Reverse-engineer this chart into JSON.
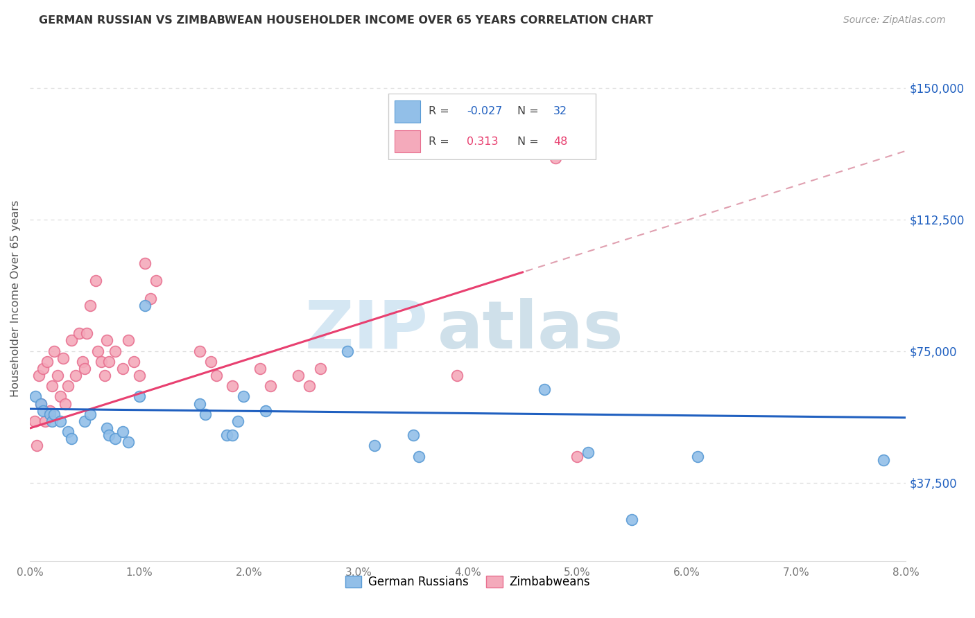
{
  "title": "GERMAN RUSSIAN VS ZIMBABWEAN HOUSEHOLDER INCOME OVER 65 YEARS CORRELATION CHART",
  "source": "Source: ZipAtlas.com",
  "ylabel": "Householder Income Over 65 years",
  "xlim": [
    0.0,
    8.0
  ],
  "ylim": [
    15000,
    165000
  ],
  "yticks": [
    37500,
    75000,
    112500,
    150000
  ],
  "ytick_labels": [
    "$37,500",
    "$75,000",
    "$112,500",
    "$150,000"
  ],
  "xticks": [
    0,
    1,
    2,
    3,
    4,
    5,
    6,
    7,
    8
  ],
  "xtick_labels": [
    "0.0%",
    "1.0%",
    "2.0%",
    "3.0%",
    "4.0%",
    "5.0%",
    "6.0%",
    "7.0%",
    "8.0%"
  ],
  "blue_color": "#92BFE8",
  "blue_edge_color": "#5A9BD5",
  "pink_color": "#F4AABB",
  "pink_edge_color": "#E87090",
  "blue_line_color": "#2060C0",
  "pink_line_color": "#E84070",
  "pink_dash_color": "#E0A0B0",
  "watermark_zip_color": "#C8DFF0",
  "watermark_atlas_color": "#B0CCDC",
  "title_color": "#333333",
  "source_color": "#999999",
  "ylabel_color": "#555555",
  "tick_color": "#777777",
  "right_tick_color": "#2060C0",
  "grid_color": "#DDDDDD",
  "legend_border_color": "#CCCCCC",
  "blue_scatter_x": [
    0.05,
    0.1,
    0.12,
    0.18,
    0.2,
    0.22,
    0.28,
    0.35,
    0.38,
    0.5,
    0.55,
    0.7,
    0.72,
    0.78,
    0.85,
    0.9,
    1.0,
    1.05,
    1.55,
    1.6,
    1.8,
    1.85,
    1.9,
    1.95,
    2.15,
    2.9,
    3.15,
    3.5,
    3.55,
    4.7,
    5.1,
    5.5,
    6.1,
    7.8
  ],
  "blue_scatter_y": [
    62000,
    60000,
    58000,
    57000,
    55000,
    57000,
    55000,
    52000,
    50000,
    55000,
    57000,
    53000,
    51000,
    50000,
    52000,
    49000,
    62000,
    88000,
    60000,
    57000,
    51000,
    51000,
    55000,
    62000,
    58000,
    75000,
    48000,
    51000,
    45000,
    64000,
    46000,
    27000,
    45000,
    44000
  ],
  "pink_scatter_x": [
    0.04,
    0.06,
    0.08,
    0.1,
    0.12,
    0.14,
    0.16,
    0.18,
    0.2,
    0.22,
    0.25,
    0.28,
    0.3,
    0.32,
    0.35,
    0.38,
    0.42,
    0.45,
    0.48,
    0.5,
    0.52,
    0.55,
    0.6,
    0.62,
    0.65,
    0.68,
    0.7,
    0.72,
    0.78,
    0.85,
    0.9,
    0.95,
    1.0,
    1.05,
    1.1,
    1.15,
    1.55,
    1.65,
    1.7,
    1.85,
    2.1,
    2.2,
    2.45,
    2.55,
    2.65,
    3.9,
    4.8,
    5.0
  ],
  "pink_scatter_y": [
    55000,
    48000,
    68000,
    60000,
    70000,
    55000,
    72000,
    58000,
    65000,
    75000,
    68000,
    62000,
    73000,
    60000,
    65000,
    78000,
    68000,
    80000,
    72000,
    70000,
    80000,
    88000,
    95000,
    75000,
    72000,
    68000,
    78000,
    72000,
    75000,
    70000,
    78000,
    72000,
    68000,
    100000,
    90000,
    95000,
    75000,
    72000,
    68000,
    65000,
    70000,
    65000,
    68000,
    65000,
    70000,
    68000,
    130000,
    45000
  ]
}
